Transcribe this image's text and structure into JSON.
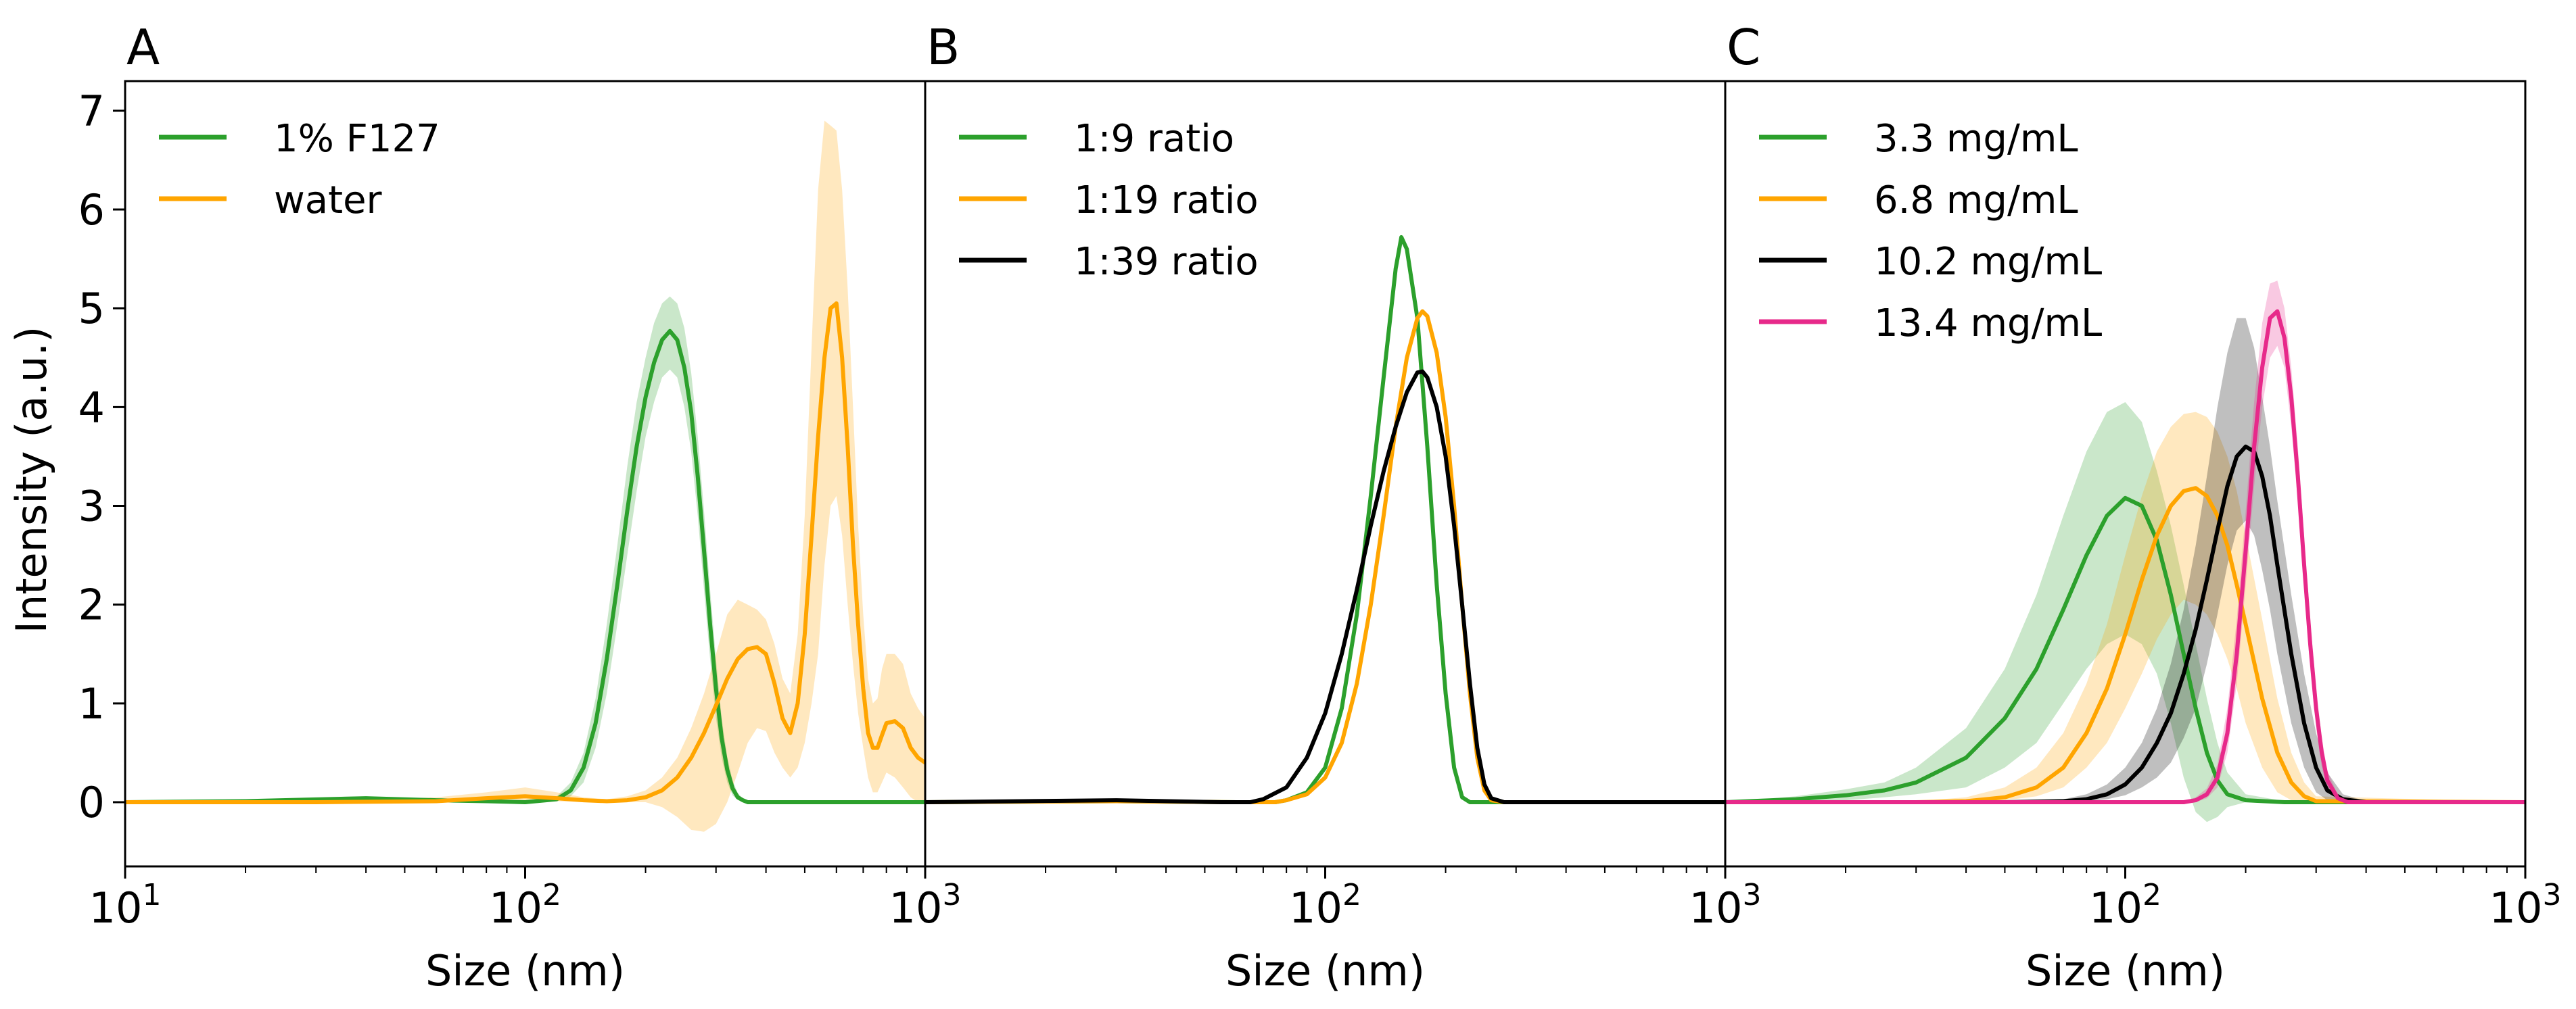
{
  "figure": {
    "ylabel": "Intensity (a.u.)"
  },
  "chart_data": [
    {
      "type": "line",
      "panel": "A",
      "xlabel": "Size (nm)",
      "ylabel": "Intensity (a.u.)",
      "xscale": "log",
      "xlim": [
        10,
        1000
      ],
      "ylim": [
        -0.65,
        7.3
      ],
      "xticks": [
        {
          "value": 10,
          "base": "10",
          "exp": "1"
        },
        {
          "value": 100,
          "base": "10",
          "exp": "2"
        },
        {
          "value": 1000,
          "base": "10",
          "exp": "3"
        }
      ],
      "yticks": [
        "0",
        "1",
        "2",
        "3",
        "4",
        "5",
        "6",
        "7"
      ],
      "legend_position": "top-left",
      "series": [
        {
          "name": "1% F127",
          "color": "#2ca02c",
          "x": [
            10,
            20,
            40,
            60,
            80,
            100,
            120,
            130,
            140,
            150,
            160,
            170,
            180,
            190,
            200,
            210,
            220,
            230,
            240,
            250,
            260,
            270,
            280,
            290,
            300,
            310,
            320,
            330,
            340,
            350,
            360,
            400,
            500,
            1000
          ],
          "y": [
            0,
            0.01,
            0.04,
            0.02,
            0.01,
            0.0,
            0.03,
            0.12,
            0.35,
            0.8,
            1.45,
            2.2,
            2.95,
            3.6,
            4.1,
            4.45,
            4.68,
            4.77,
            4.68,
            4.4,
            3.95,
            3.3,
            2.55,
            1.8,
            1.15,
            0.65,
            0.33,
            0.14,
            0.05,
            0.02,
            0.0,
            0.0,
            0.0,
            0.0
          ],
          "lower": [
            0,
            0.01,
            0.03,
            0.01,
            0.0,
            0.0,
            0.01,
            0.06,
            0.2,
            0.55,
            1.1,
            1.8,
            2.5,
            3.15,
            3.7,
            4.05,
            4.3,
            4.38,
            4.3,
            4.0,
            3.55,
            2.9,
            2.15,
            1.45,
            0.85,
            0.45,
            0.2,
            0.07,
            0.02,
            0.01,
            0.0,
            0.0,
            0.0,
            0.0
          ],
          "upper": [
            0,
            0.02,
            0.06,
            0.03,
            0.02,
            0.02,
            0.06,
            0.2,
            0.5,
            1.05,
            1.8,
            2.6,
            3.4,
            4.05,
            4.5,
            4.85,
            5.05,
            5.12,
            5.05,
            4.8,
            4.35,
            3.7,
            2.95,
            2.15,
            1.45,
            0.85,
            0.46,
            0.22,
            0.09,
            0.04,
            0.01,
            0.0,
            0.0,
            0.0
          ]
        },
        {
          "name": "water",
          "color": "#ffa500",
          "x": [
            10,
            30,
            60,
            80,
            100,
            120,
            140,
            160,
            180,
            200,
            220,
            240,
            260,
            280,
            300,
            320,
            340,
            360,
            380,
            400,
            420,
            440,
            460,
            480,
            500,
            520,
            540,
            560,
            580,
            600,
            620,
            640,
            660,
            680,
            700,
            720,
            740,
            760,
            780,
            800,
            840,
            880,
            920,
            960,
            1000
          ],
          "y": [
            0,
            0.0,
            0.01,
            0.04,
            0.06,
            0.04,
            0.02,
            0.01,
            0.02,
            0.05,
            0.12,
            0.25,
            0.45,
            0.7,
            0.98,
            1.25,
            1.45,
            1.55,
            1.57,
            1.5,
            1.2,
            0.85,
            0.7,
            1.0,
            1.7,
            2.7,
            3.7,
            4.5,
            5.0,
            5.05,
            4.5,
            3.6,
            2.6,
            1.8,
            1.15,
            0.7,
            0.55,
            0.55,
            0.68,
            0.8,
            0.82,
            0.75,
            0.55,
            0.45,
            0.4
          ],
          "lower": [
            0,
            0.0,
            0.0,
            0.01,
            0.02,
            0.01,
            0.0,
            0.0,
            0.0,
            0.0,
            -0.05,
            -0.15,
            -0.28,
            -0.3,
            -0.22,
            0.0,
            0.3,
            0.6,
            0.75,
            0.72,
            0.5,
            0.35,
            0.25,
            0.35,
            0.6,
            1.0,
            1.5,
            2.4,
            3.0,
            3.1,
            2.7,
            2.0,
            1.4,
            0.9,
            0.55,
            0.25,
            0.1,
            0.1,
            0.2,
            0.3,
            0.25,
            0.15,
            0.05,
            0.0,
            0.0
          ],
          "upper": [
            0,
            0.01,
            0.05,
            0.1,
            0.15,
            0.1,
            0.05,
            0.03,
            0.06,
            0.12,
            0.25,
            0.45,
            0.75,
            1.1,
            1.5,
            1.9,
            2.05,
            2.0,
            1.95,
            1.85,
            1.6,
            1.25,
            1.1,
            1.7,
            2.9,
            4.6,
            6.2,
            6.9,
            6.85,
            6.8,
            6.2,
            5.2,
            4.0,
            2.8,
            1.9,
            1.25,
            1.0,
            1.05,
            1.35,
            1.5,
            1.5,
            1.4,
            1.1,
            0.95,
            0.85
          ]
        }
      ]
    },
    {
      "type": "line",
      "panel": "B",
      "xlabel": "Size (nm)",
      "xscale": "log",
      "xlim": [
        10,
        1000
      ],
      "ylim": [
        -0.65,
        7.3
      ],
      "xticks": [
        {
          "value": 100,
          "base": "10",
          "exp": "2"
        },
        {
          "value": 1000,
          "base": "10",
          "exp": "3"
        }
      ],
      "legend_position": "top-left",
      "series": [
        {
          "name": "1:9 ratio",
          "color": "#2ca02c",
          "x": [
            10,
            30,
            60,
            75,
            80,
            90,
            100,
            110,
            120,
            130,
            140,
            150,
            155,
            160,
            170,
            180,
            190,
            200,
            210,
            220,
            230,
            1000
          ],
          "y": [
            0,
            0.01,
            0.0,
            0.0,
            0.02,
            0.1,
            0.35,
            0.95,
            1.9,
            3.1,
            4.3,
            5.4,
            5.72,
            5.6,
            4.9,
            3.6,
            2.2,
            1.1,
            0.35,
            0.05,
            0.0,
            0.0
          ]
        },
        {
          "name": "1:19 ratio",
          "color": "#ffa500",
          "x": [
            10,
            30,
            60,
            75,
            80,
            90,
            100,
            110,
            120,
            130,
            140,
            150,
            160,
            170,
            175,
            180,
            190,
            200,
            210,
            220,
            230,
            240,
            250,
            260,
            280,
            1000
          ],
          "y": [
            0,
            0.01,
            0.0,
            0.0,
            0.02,
            0.08,
            0.25,
            0.6,
            1.2,
            2.0,
            2.9,
            3.8,
            4.5,
            4.9,
            4.97,
            4.92,
            4.55,
            3.9,
            3.0,
            2.0,
            1.1,
            0.45,
            0.12,
            0.02,
            0.0,
            0.0
          ]
        },
        {
          "name": "1:39 ratio",
          "color": "#000000",
          "x": [
            10,
            30,
            55,
            65,
            70,
            80,
            90,
            100,
            110,
            120,
            130,
            140,
            150,
            160,
            170,
            175,
            180,
            190,
            200,
            210,
            220,
            230,
            240,
            250,
            260,
            280,
            1000
          ],
          "y": [
            0,
            0.02,
            0.0,
            0.0,
            0.03,
            0.15,
            0.45,
            0.9,
            1.5,
            2.15,
            2.8,
            3.35,
            3.8,
            4.15,
            4.35,
            4.36,
            4.3,
            4.0,
            3.5,
            2.8,
            2.0,
            1.2,
            0.55,
            0.18,
            0.04,
            0.0,
            0.0
          ]
        }
      ]
    },
    {
      "type": "line",
      "panel": "C",
      "xlabel": "Size (nm)",
      "xscale": "log",
      "xlim": [
        10,
        1000
      ],
      "ylim": [
        -0.65,
        7.3
      ],
      "xticks": [
        {
          "value": 100,
          "base": "10",
          "exp": "2"
        },
        {
          "value": 1000,
          "base": "10",
          "exp": "3"
        }
      ],
      "legend_position": "top-left",
      "series": [
        {
          "name": "3.3 mg/mL",
          "color": "#2ca02c",
          "x": [
            10,
            15,
            20,
            25,
            30,
            40,
            50,
            60,
            70,
            80,
            90,
            100,
            110,
            120,
            130,
            140,
            150,
            160,
            170,
            180,
            200,
            250,
            1000
          ],
          "y": [
            0.0,
            0.03,
            0.07,
            0.12,
            0.2,
            0.45,
            0.85,
            1.35,
            1.95,
            2.5,
            2.9,
            3.08,
            3.0,
            2.65,
            2.1,
            1.5,
            0.95,
            0.5,
            0.22,
            0.08,
            0.02,
            0.0,
            0.0
          ],
          "lower": [
            0.0,
            0.0,
            0.02,
            0.05,
            0.08,
            0.15,
            0.35,
            0.6,
            1.0,
            1.35,
            1.6,
            1.7,
            1.6,
            1.3,
            0.8,
            0.25,
            -0.1,
            -0.2,
            -0.15,
            -0.05,
            0.0,
            0.0,
            0.0
          ],
          "upper": [
            0.0,
            0.06,
            0.13,
            0.2,
            0.35,
            0.75,
            1.35,
            2.1,
            2.9,
            3.55,
            3.95,
            4.05,
            3.85,
            3.35,
            2.8,
            2.2,
            1.6,
            1.05,
            0.6,
            0.3,
            0.08,
            0.01,
            0.0
          ]
        },
        {
          "name": "6.8 mg/mL",
          "color": "#ffa500",
          "x": [
            10,
            30,
            40,
            50,
            60,
            70,
            80,
            90,
            100,
            110,
            120,
            130,
            140,
            150,
            160,
            170,
            180,
            190,
            200,
            220,
            240,
            260,
            280,
            300,
            1000
          ],
          "y": [
            0,
            0.0,
            0.01,
            0.05,
            0.15,
            0.35,
            0.7,
            1.15,
            1.7,
            2.25,
            2.7,
            3.0,
            3.15,
            3.18,
            3.1,
            2.9,
            2.6,
            2.2,
            1.8,
            1.05,
            0.5,
            0.2,
            0.06,
            0.01,
            0.0
          ],
          "lower": [
            0,
            0.0,
            0.0,
            0.02,
            0.06,
            0.15,
            0.35,
            0.6,
            0.95,
            1.3,
            1.65,
            1.9,
            2.05,
            2.0,
            1.9,
            1.7,
            1.45,
            1.15,
            0.8,
            0.35,
            0.1,
            0.02,
            0.0,
            0.0,
            0.0
          ],
          "upper": [
            0,
            0.01,
            0.05,
            0.15,
            0.35,
            0.7,
            1.2,
            1.8,
            2.5,
            3.1,
            3.55,
            3.8,
            3.93,
            3.95,
            3.9,
            3.75,
            3.5,
            3.15,
            2.7,
            1.85,
            1.05,
            0.5,
            0.2,
            0.06,
            0.0
          ]
        },
        {
          "name": "10.2 mg/mL",
          "color": "#000000",
          "x": [
            10,
            50,
            70,
            80,
            90,
            100,
            110,
            120,
            130,
            140,
            150,
            160,
            170,
            180,
            190,
            200,
            210,
            220,
            230,
            240,
            260,
            280,
            300,
            320,
            350,
            400,
            1000
          ],
          "y": [
            0,
            0.0,
            0.01,
            0.03,
            0.08,
            0.18,
            0.35,
            0.6,
            0.9,
            1.3,
            1.75,
            2.25,
            2.75,
            3.2,
            3.5,
            3.6,
            3.55,
            3.3,
            2.9,
            2.4,
            1.5,
            0.8,
            0.35,
            0.12,
            0.03,
            0.0,
            0.0
          ],
          "lower": [
            0,
            0.0,
            0.0,
            0.01,
            0.03,
            0.07,
            0.15,
            0.25,
            0.4,
            0.65,
            0.95,
            1.4,
            1.9,
            2.4,
            2.75,
            2.85,
            2.7,
            2.35,
            1.95,
            1.5,
            0.8,
            0.35,
            0.1,
            0.02,
            0.0,
            0.0,
            0.0
          ],
          "upper": [
            0,
            0.01,
            0.03,
            0.08,
            0.18,
            0.35,
            0.6,
            0.95,
            1.4,
            1.95,
            2.6,
            3.3,
            4.0,
            4.55,
            4.9,
            4.9,
            4.6,
            4.1,
            3.6,
            3.05,
            2.1,
            1.3,
            0.7,
            0.3,
            0.08,
            0.01,
            0.0
          ]
        },
        {
          "name": "13.4 mg/mL",
          "color": "#e7298a",
          "x": [
            10,
            140,
            150,
            160,
            170,
            180,
            190,
            200,
            210,
            220,
            230,
            240,
            250,
            260,
            270,
            280,
            290,
            300,
            310,
            320,
            340,
            360,
            1000
          ],
          "y": [
            0,
            0.0,
            0.02,
            0.08,
            0.25,
            0.7,
            1.5,
            2.55,
            3.6,
            4.4,
            4.9,
            4.97,
            4.7,
            4.1,
            3.3,
            2.4,
            1.6,
            0.95,
            0.5,
            0.22,
            0.04,
            0.0,
            0.0
          ],
          "lower": [
            0,
            0.0,
            0.0,
            0.04,
            0.15,
            0.5,
            1.2,
            2.2,
            3.2,
            4.0,
            4.5,
            4.62,
            4.4,
            3.8,
            3.05,
            2.15,
            1.35,
            0.75,
            0.35,
            0.13,
            0.02,
            0.0,
            0.0
          ],
          "upper": [
            0,
            0.01,
            0.05,
            0.14,
            0.38,
            0.95,
            1.85,
            2.95,
            4.05,
            4.85,
            5.25,
            5.28,
            5.0,
            4.4,
            3.6,
            2.7,
            1.85,
            1.15,
            0.65,
            0.32,
            0.07,
            0.01,
            0.0
          ]
        }
      ]
    }
  ]
}
